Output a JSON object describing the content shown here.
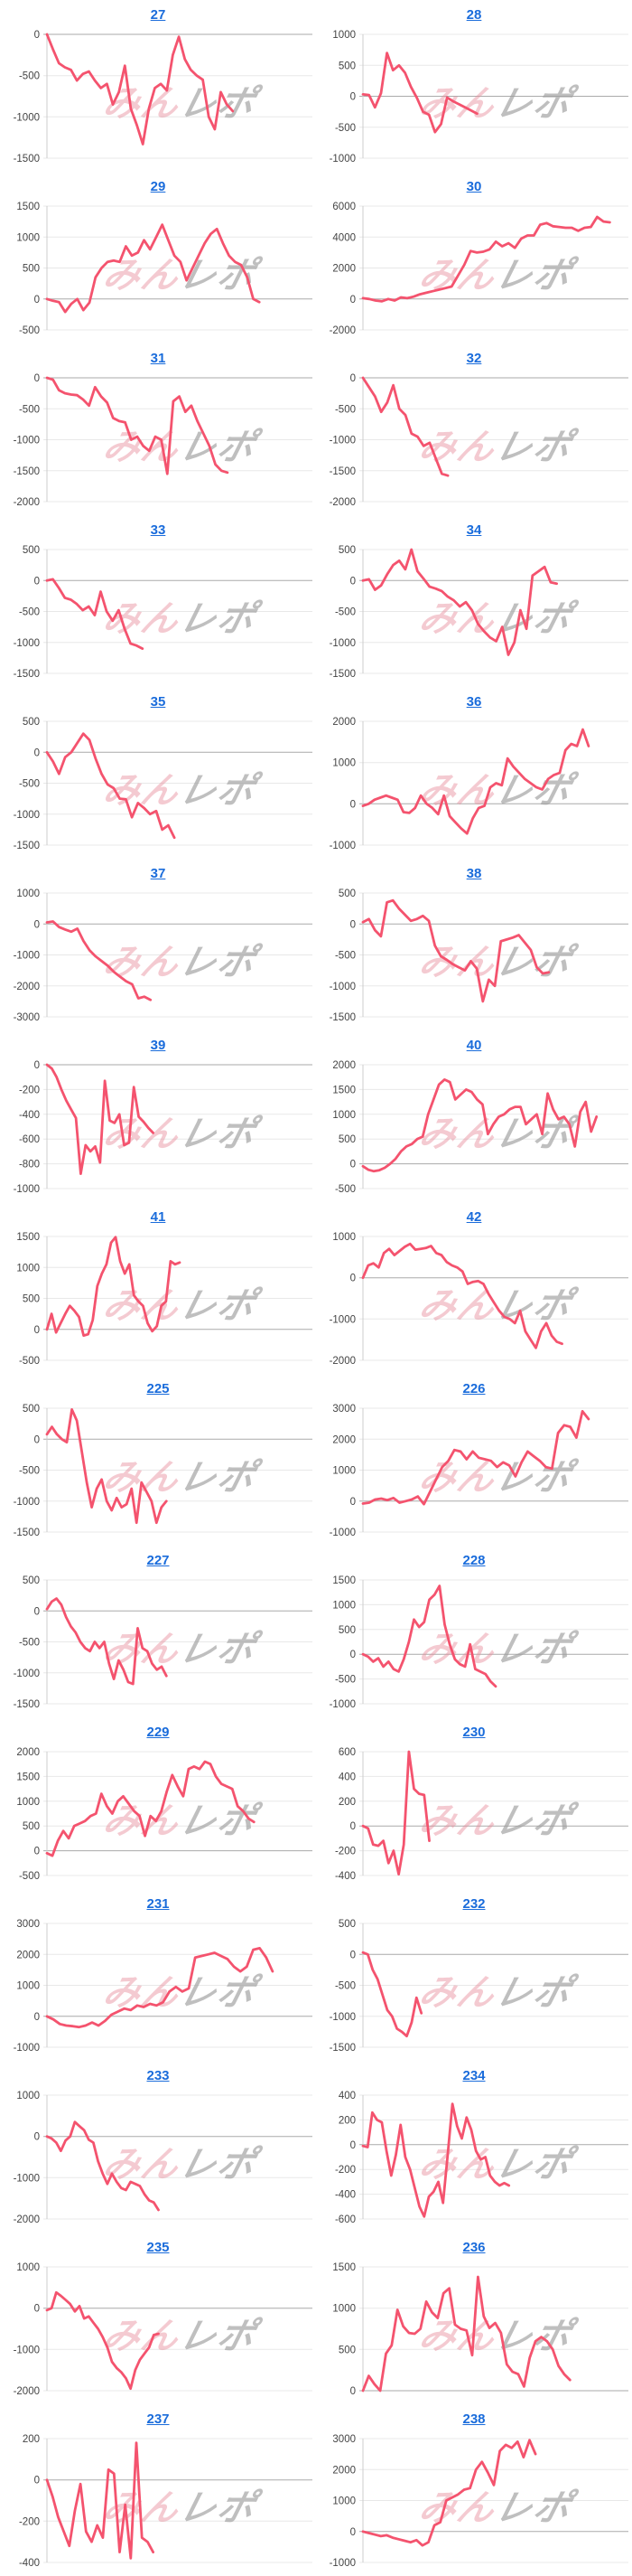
{
  "style": {
    "background": "#ffffff",
    "line_color": "#f4536e",
    "link_color": "#1a6cdb",
    "grid_color": "#e8e8e8",
    "zero_line_color": "#aaaaaa",
    "axis_line_color": "#cccccc",
    "tick_label_color": "#444444",
    "watermark_pink": "#e78c9a",
    "watermark_gray": "#9e9e9e"
  },
  "watermark": {
    "text_pink": "みん",
    "text_gray": "レポ"
  },
  "chart_data": [
    {
      "type": "line",
      "title": "27",
      "ylim": [
        -1500,
        0
      ],
      "yticks": [
        0,
        -500,
        -1000,
        -1500
      ],
      "span": 0.7,
      "values": [
        0,
        -180,
        -350,
        -400,
        -430,
        -560,
        -480,
        -450,
        -560,
        -650,
        -600,
        -850,
        -700,
        -380,
        -900,
        -1100,
        -1330,
        -900,
        -650,
        -600,
        -680,
        -250,
        -30,
        -300,
        -430,
        -500,
        -550,
        -1000,
        -1150,
        -700,
        -850,
        -930
      ]
    },
    {
      "type": "line",
      "title": "28",
      "ylim": [
        -1000,
        1000
      ],
      "yticks": [
        1000,
        500,
        0,
        -500,
        -1000
      ],
      "span": 0.43,
      "values": [
        30,
        20,
        -180,
        50,
        700,
        420,
        500,
        380,
        150,
        -30,
        -250,
        -300,
        -580,
        -450,
        -20,
        -80,
        -130,
        -180,
        -230,
        -280
      ]
    },
    {
      "type": "line",
      "title": "29",
      "ylim": [
        -500,
        1500
      ],
      "yticks": [
        1500,
        1000,
        500,
        0,
        -500
      ],
      "span": 0.8,
      "values": [
        0,
        -30,
        -50,
        -210,
        -80,
        0,
        -180,
        -60,
        350,
        500,
        600,
        620,
        600,
        850,
        700,
        750,
        950,
        800,
        1000,
        1200,
        950,
        700,
        600,
        300,
        500,
        700,
        900,
        1050,
        1130,
        900,
        700,
        600,
        550,
        350,
        0,
        -50
      ]
    },
    {
      "type": "line",
      "title": "30",
      "ylim": [
        -2000,
        6000
      ],
      "yticks": [
        6000,
        4000,
        2000,
        0,
        -2000
      ],
      "span": 0.93,
      "values": [
        50,
        0,
        -100,
        -150,
        0,
        -100,
        100,
        50,
        150,
        300,
        400,
        500,
        600,
        700,
        800,
        1500,
        2200,
        3100,
        3000,
        3050,
        3200,
        3700,
        3400,
        3600,
        3300,
        3900,
        4100,
        4100,
        4800,
        4900,
        4700,
        4650,
        4600,
        4600,
        4400,
        4600,
        4650,
        5300,
        5000,
        4950
      ]
    },
    {
      "type": "line",
      "title": "31",
      "ylim": [
        -2000,
        0
      ],
      "yticks": [
        0,
        -500,
        -1000,
        -1500,
        -2000
      ],
      "span": 0.68,
      "values": [
        0,
        -30,
        -200,
        -250,
        -270,
        -280,
        -350,
        -450,
        -150,
        -300,
        -400,
        -650,
        -700,
        -720,
        -1000,
        -950,
        -1100,
        -1180,
        -950,
        -1000,
        -1550,
        -380,
        -300,
        -550,
        -450,
        -700,
        -900,
        -1100,
        -1400,
        -1500,
        -1530
      ]
    },
    {
      "type": "line",
      "title": "32",
      "ylim": [
        -2000,
        0
      ],
      "yticks": [
        0,
        -500,
        -1000,
        -1500,
        -2000
      ],
      "span": 0.32,
      "values": [
        0,
        -150,
        -300,
        -550,
        -400,
        -120,
        -500,
        -600,
        -900,
        -950,
        -1100,
        -1050,
        -1300,
        -1550,
        -1580
      ]
    },
    {
      "type": "line",
      "title": "33",
      "ylim": [
        -1500,
        500
      ],
      "yticks": [
        500,
        0,
        -500,
        -1000,
        -1500
      ],
      "span": 0.36,
      "values": [
        0,
        20,
        -120,
        -280,
        -310,
        -380,
        -480,
        -420,
        -560,
        -180,
        -500,
        -650,
        -480,
        -780,
        -1020,
        -1050,
        -1100
      ]
    },
    {
      "type": "line",
      "title": "34",
      "ylim": [
        -1500,
        500
      ],
      "yticks": [
        500,
        0,
        -500,
        -1000,
        -1500
      ],
      "span": 0.73,
      "values": [
        0,
        20,
        -150,
        -80,
        100,
        250,
        320,
        180,
        500,
        150,
        30,
        -100,
        -130,
        -170,
        -260,
        -320,
        -420,
        -350,
        -480,
        -700,
        -820,
        -920,
        -980,
        -750,
        -1200,
        -1000,
        -480,
        -780,
        80,
        150,
        220,
        -30,
        -50
      ]
    },
    {
      "type": "line",
      "title": "35",
      "ylim": [
        -1500,
        500
      ],
      "yticks": [
        500,
        0,
        -500,
        -1000,
        -1500
      ],
      "span": 0.48,
      "values": [
        0,
        -150,
        -350,
        -80,
        0,
        150,
        300,
        200,
        -100,
        -350,
        -520,
        -580,
        -750,
        -760,
        -1050,
        -820,
        -900,
        -1000,
        -950,
        -1250,
        -1180,
        -1380
      ]
    },
    {
      "type": "line",
      "title": "36",
      "ylim": [
        -1000,
        2000
      ],
      "yticks": [
        2000,
        1000,
        0,
        -1000
      ],
      "span": 0.85,
      "values": [
        -50,
        0,
        100,
        150,
        200,
        150,
        100,
        -200,
        -220,
        -100,
        200,
        0,
        -100,
        -250,
        200,
        -300,
        -450,
        -600,
        -720,
        -350,
        -100,
        -50,
        400,
        500,
        450,
        1100,
        900,
        750,
        600,
        500,
        400,
        350,
        600,
        700,
        750,
        1300,
        1450,
        1400,
        1800,
        1400
      ]
    },
    {
      "type": "line",
      "title": "37",
      "ylim": [
        -3000,
        1000
      ],
      "yticks": [
        1000,
        0,
        -1000,
        -2000,
        -3000
      ],
      "span": 0.39,
      "values": [
        50,
        80,
        -100,
        -180,
        -250,
        -150,
        -550,
        -850,
        -1050,
        -1200,
        -1350,
        -1550,
        -1700,
        -1850,
        -1950,
        -2400,
        -2350,
        -2450
      ]
    },
    {
      "type": "line",
      "title": "38",
      "ylim": [
        -1500,
        500
      ],
      "yticks": [
        500,
        0,
        -500,
        -1000,
        -1500
      ],
      "span": 0.7,
      "values": [
        30,
        80,
        -100,
        -200,
        350,
        380,
        250,
        150,
        50,
        80,
        130,
        50,
        -350,
        -520,
        -580,
        -650,
        -700,
        -750,
        -600,
        -720,
        -1250,
        -900,
        -1000,
        -280,
        -250,
        -220,
        -180,
        -300,
        -420,
        -700,
        -800,
        -780
      ]
    },
    {
      "type": "line",
      "title": "39",
      "ylim": [
        -1000,
        0
      ],
      "yticks": [
        0,
        -200,
        -400,
        -600,
        -800,
        -1000
      ],
      "span": 0.4,
      "values": [
        0,
        -30,
        -100,
        -200,
        -290,
        -360,
        -430,
        -880,
        -650,
        -700,
        -660,
        -790,
        -130,
        -450,
        -470,
        -400,
        -650,
        -630,
        -180,
        -420,
        -460,
        -510,
        -550
      ]
    },
    {
      "type": "line",
      "title": "40",
      "ylim": [
        -500,
        2000
      ],
      "yticks": [
        2000,
        1500,
        1000,
        500,
        0,
        -500
      ],
      "span": 0.88,
      "values": [
        -50,
        -120,
        -150,
        -130,
        -80,
        0,
        100,
        250,
        350,
        400,
        500,
        550,
        1000,
        1300,
        1600,
        1700,
        1650,
        1300,
        1400,
        1500,
        1450,
        1300,
        1200,
        600,
        800,
        950,
        1000,
        1100,
        1150,
        1150,
        800,
        900,
        1000,
        600,
        1420,
        1100,
        900,
        950,
        800,
        350,
        1050,
        1250,
        650,
        950
      ]
    },
    {
      "type": "line",
      "title": "41",
      "ylim": [
        -500,
        1500
      ],
      "yticks": [
        1500,
        1000,
        500,
        0,
        -500
      ],
      "span": 0.5,
      "values": [
        0,
        250,
        -50,
        100,
        250,
        380,
        300,
        200,
        -100,
        -80,
        150,
        700,
        900,
        1050,
        1400,
        1490,
        1100,
        900,
        1050,
        550,
        450,
        380,
        100,
        -30,
        50,
        380,
        450,
        1100,
        1050,
        1080
      ]
    },
    {
      "type": "line",
      "title": "42",
      "ylim": [
        -2000,
        1000
      ],
      "yticks": [
        1000,
        0,
        -1000,
        -2000
      ],
      "span": 0.75,
      "values": [
        0,
        300,
        350,
        250,
        600,
        700,
        550,
        650,
        750,
        820,
        680,
        700,
        720,
        770,
        600,
        550,
        380,
        300,
        250,
        150,
        -150,
        -100,
        -80,
        -150,
        -400,
        -600,
        -800,
        -950,
        -1000,
        -1100,
        -800,
        -1300,
        -1500,
        -1700,
        -1300,
        -1100,
        -1400,
        -1550,
        -1600
      ]
    },
    {
      "type": "line",
      "title": "225",
      "ylim": [
        -1500,
        500
      ],
      "yticks": [
        500,
        0,
        -500,
        -1000,
        -1500
      ],
      "span": 0.45,
      "values": [
        80,
        200,
        80,
        0,
        -50,
        480,
        300,
        -200,
        -700,
        -1100,
        -800,
        -650,
        -1000,
        -1150,
        -950,
        -1100,
        -1050,
        -800,
        -1350,
        -700,
        -850,
        -1000,
        -1350,
        -1100,
        -1000
      ]
    },
    {
      "type": "line",
      "title": "226",
      "ylim": [
        -1000,
        3000
      ],
      "yticks": [
        3000,
        2000,
        1000,
        0,
        -1000
      ],
      "span": 0.85,
      "values": [
        -80,
        -50,
        50,
        80,
        30,
        100,
        -50,
        0,
        50,
        150,
        -100,
        300,
        700,
        1100,
        1300,
        1650,
        1600,
        1350,
        1600,
        1400,
        1350,
        1300,
        1100,
        1250,
        1150,
        800,
        1250,
        1600,
        1450,
        1300,
        1100,
        1050,
        2200,
        2450,
        2400,
        2050,
        2900,
        2650
      ]
    },
    {
      "type": "line",
      "title": "227",
      "ylim": [
        -1500,
        500
      ],
      "yticks": [
        500,
        0,
        -500,
        -1000,
        -1500
      ],
      "span": 0.45,
      "values": [
        30,
        150,
        200,
        100,
        -100,
        -250,
        -350,
        -500,
        -600,
        -650,
        -500,
        -600,
        -500,
        -850,
        -1100,
        -800,
        -950,
        -1150,
        -1180,
        -280,
        -600,
        -650,
        -850,
        -950,
        -900,
        -1050
      ]
    },
    {
      "type": "line",
      "title": "228",
      "ylim": [
        -1000,
        1500
      ],
      "yticks": [
        1500,
        1000,
        500,
        0,
        -500,
        -1000
      ],
      "span": 0.5,
      "values": [
        0,
        -50,
        -150,
        -80,
        -250,
        -150,
        -300,
        -350,
        -100,
        250,
        700,
        550,
        650,
        1100,
        1200,
        1380,
        600,
        200,
        -100,
        -200,
        -250,
        200,
        -300,
        -350,
        -400,
        -550,
        -650
      ]
    },
    {
      "type": "line",
      "title": "229",
      "ylim": [
        -500,
        2000
      ],
      "yticks": [
        2000,
        1500,
        1000,
        500,
        0,
        -500
      ],
      "span": 0.78,
      "values": [
        -50,
        -100,
        200,
        400,
        250,
        500,
        550,
        600,
        700,
        750,
        1150,
        900,
        750,
        1000,
        1100,
        950,
        800,
        700,
        300,
        700,
        600,
        800,
        1200,
        1530,
        1300,
        1100,
        1650,
        1700,
        1650,
        1800,
        1750,
        1500,
        1350,
        1300,
        1250,
        900,
        800,
        650,
        580
      ]
    },
    {
      "type": "line",
      "title": "230",
      "ylim": [
        -400,
        600
      ],
      "yticks": [
        600,
        400,
        200,
        0,
        -200,
        -400
      ],
      "span": 0.25,
      "values": [
        0,
        -20,
        -150,
        -160,
        -120,
        -300,
        -200,
        -390,
        -150,
        600,
        300,
        260,
        250,
        -120
      ]
    },
    {
      "type": "line",
      "title": "231",
      "ylim": [
        -1000,
        3000
      ],
      "yticks": [
        3000,
        2000,
        1000,
        0,
        -1000
      ],
      "span": 0.85,
      "values": [
        0,
        -100,
        -250,
        -300,
        -320,
        -350,
        -300,
        -200,
        -300,
        -150,
        50,
        150,
        250,
        200,
        350,
        300,
        400,
        350,
        450,
        800,
        950,
        800,
        900,
        1900,
        1950,
        2000,
        2050,
        1950,
        1850,
        1600,
        1450,
        1600,
        2150,
        2200,
        1900,
        1450
      ]
    },
    {
      "type": "line",
      "title": "232",
      "ylim": [
        -1500,
        500
      ],
      "yticks": [
        500,
        0,
        -500,
        -1000,
        -1500
      ],
      "span": 0.22,
      "values": [
        30,
        0,
        -250,
        -400,
        -650,
        -900,
        -1000,
        -1200,
        -1250,
        -1320,
        -1100,
        -700,
        -950
      ]
    },
    {
      "type": "line",
      "title": "233",
      "ylim": [
        -2000,
        1000
      ],
      "yticks": [
        1000,
        0,
        -1000,
        -2000
      ],
      "span": 0.42,
      "values": [
        0,
        -50,
        -150,
        -350,
        -100,
        0,
        350,
        250,
        150,
        -80,
        -150,
        -600,
        -900,
        -1150,
        -900,
        -1100,
        -1250,
        -1300,
        -1100,
        -1150,
        -1200,
        -1400,
        -1550,
        -1600,
        -1780
      ]
    },
    {
      "type": "line",
      "title": "234",
      "ylim": [
        -600,
        400
      ],
      "yticks": [
        400,
        200,
        0,
        -200,
        -400,
        -600
      ],
      "span": 0.55,
      "values": [
        -10,
        -20,
        260,
        200,
        180,
        -50,
        -250,
        -80,
        160,
        -100,
        -200,
        -350,
        -500,
        -580,
        -420,
        -380,
        -300,
        -470,
        -80,
        330,
        150,
        50,
        220,
        120,
        -50,
        -120,
        -100,
        -250,
        -300,
        -330,
        -310,
        -330
      ]
    },
    {
      "type": "line",
      "title": "235",
      "ylim": [
        -2000,
        1000
      ],
      "yticks": [
        1000,
        0,
        -1000,
        -2000
      ],
      "span": 0.42,
      "values": [
        -50,
        0,
        380,
        300,
        200,
        100,
        -80,
        50,
        -250,
        -200,
        -350,
        -500,
        -700,
        -950,
        -1300,
        -1450,
        -1550,
        -1700,
        -1950,
        -1500,
        -1250,
        -1100,
        -950,
        -650,
        -620
      ]
    },
    {
      "type": "line",
      "title": "236",
      "ylim": [
        0,
        1500
      ],
      "yticks": [
        1500,
        1000,
        500,
        0
      ],
      "span": 0.78,
      "values": [
        0,
        180,
        80,
        0,
        450,
        550,
        980,
        780,
        700,
        690,
        750,
        1080,
        950,
        880,
        1180,
        1240,
        800,
        750,
        730,
        430,
        1380,
        900,
        760,
        820,
        700,
        320,
        230,
        200,
        50,
        400,
        600,
        650,
        600,
        500,
        300,
        200,
        130
      ]
    },
    {
      "type": "line",
      "title": "237",
      "ylim": [
        -400,
        200
      ],
      "yticks": [
        200,
        0,
        -200,
        -400
      ],
      "span": 0.4,
      "values": [
        0,
        -80,
        -180,
        -250,
        -320,
        -150,
        -20,
        -250,
        -300,
        -220,
        -280,
        50,
        30,
        -350,
        -120,
        -380,
        180,
        -280,
        -300,
        -350
      ]
    },
    {
      "type": "line",
      "title": "238",
      "ylim": [
        -1000,
        3000
      ],
      "yticks": [
        3000,
        2000,
        1000,
        0,
        -1000
      ],
      "span": 0.65,
      "values": [
        0,
        -50,
        -100,
        -150,
        -120,
        -200,
        -250,
        -300,
        -350,
        -280,
        -450,
        -350,
        200,
        300,
        1000,
        1100,
        1200,
        1350,
        1400,
        2000,
        2250,
        1900,
        1500,
        2600,
        2800,
        2700,
        2900,
        2400,
        2950,
        2500
      ]
    }
  ]
}
